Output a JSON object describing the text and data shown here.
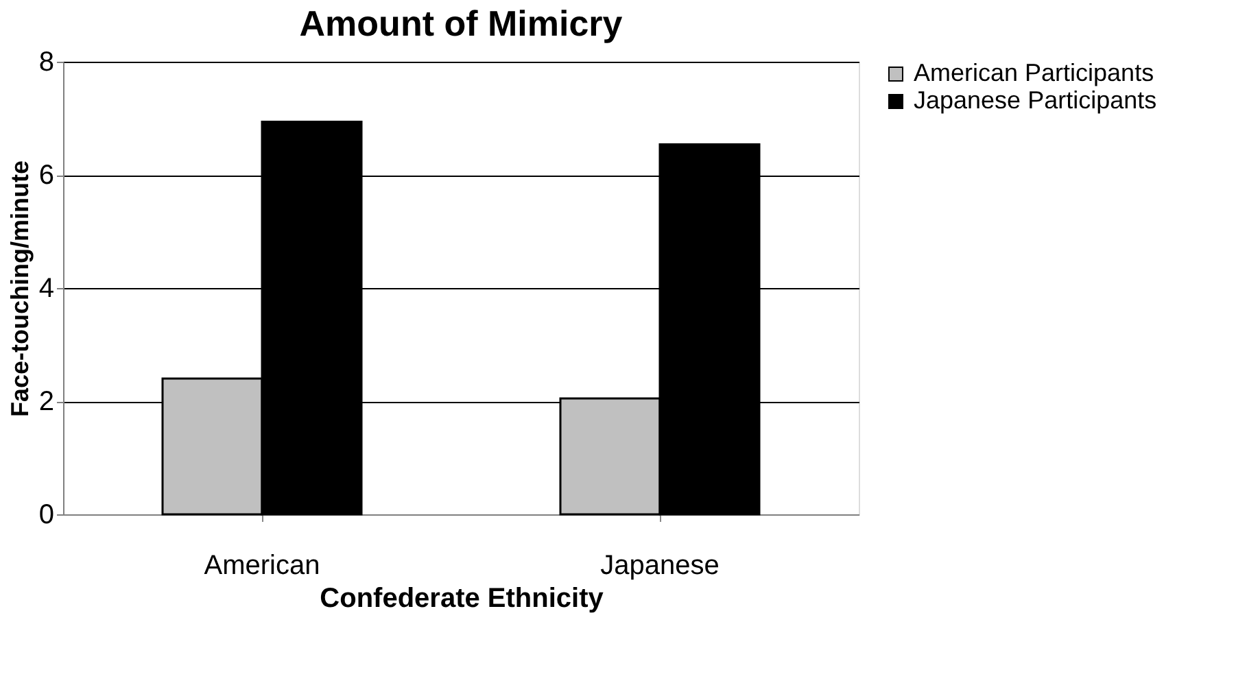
{
  "chart_data": {
    "type": "bar",
    "title": "Amount of Mimicry",
    "xlabel": "Confederate Ethnicity",
    "ylabel": "Face-touching/minute",
    "categories": [
      "American",
      "Japanese"
    ],
    "series": [
      {
        "name": "American Participants",
        "color": "#c0c0c0",
        "values": [
          2.4,
          2.05
        ]
      },
      {
        "name": "Japanese Participants",
        "color": "#000000",
        "values": [
          6.94,
          6.54
        ]
      }
    ],
    "ylim": [
      0,
      8
    ],
    "yticks": [
      0,
      2,
      4,
      6,
      8
    ],
    "grid": "y",
    "legend": "right"
  }
}
